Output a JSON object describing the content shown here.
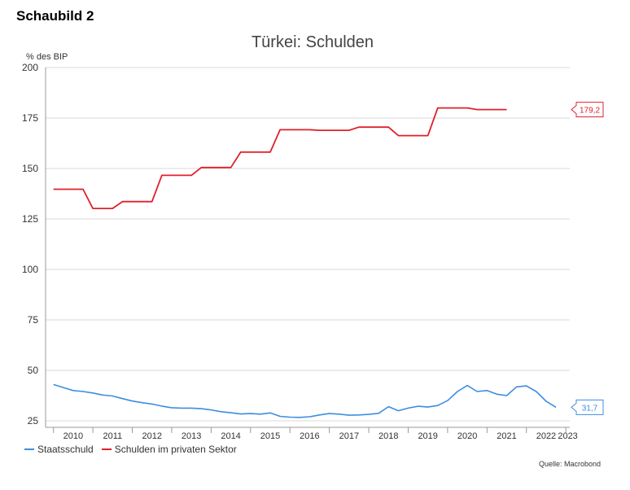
{
  "figure_label": "Schaubild 2",
  "source": "Quelle: Macrobond",
  "colors": {
    "staatsschuld": "#3d8de0",
    "privat": "#e0202a",
    "grid": "#d9d9d9",
    "axis": "#999999"
  },
  "chart_data": {
    "type": "line",
    "title": "Türkei: Schulden",
    "ylabel": "% des BIP",
    "xlabel": "",
    "ylim": [
      25,
      200
    ],
    "yticks": [
      "200",
      "175",
      "150",
      "125",
      "100",
      "75",
      "50",
      "25"
    ],
    "xlim": [
      2009.8,
      2023.1
    ],
    "xtick_labels": [
      "2010",
      "2011",
      "2012",
      "2013",
      "2014",
      "2015",
      "2016",
      "2017",
      "2018",
      "2019",
      "2020",
      "2021",
      "2022",
      "2023"
    ],
    "grid": true,
    "legend_position": "bottom-left",
    "series": [
      {
        "name": "Staatsschuld",
        "color": "#3d8de0",
        "end_label": "31,7",
        "points": [
          [
            2010.0,
            43.0
          ],
          [
            2010.25,
            41.5
          ],
          [
            2010.5,
            40.0
          ],
          [
            2010.75,
            39.5
          ],
          [
            2011.0,
            38.8
          ],
          [
            2011.25,
            37.8
          ],
          [
            2011.5,
            37.3
          ],
          [
            2011.75,
            36.0
          ],
          [
            2012.0,
            34.8
          ],
          [
            2012.25,
            34.0
          ],
          [
            2012.5,
            33.3
          ],
          [
            2012.75,
            32.3
          ],
          [
            2013.0,
            31.5
          ],
          [
            2013.25,
            31.3
          ],
          [
            2013.5,
            31.3
          ],
          [
            2013.75,
            31.0
          ],
          [
            2014.0,
            30.4
          ],
          [
            2014.25,
            29.5
          ],
          [
            2014.5,
            29.0
          ],
          [
            2014.75,
            28.4
          ],
          [
            2015.0,
            28.6
          ],
          [
            2015.25,
            28.3
          ],
          [
            2015.5,
            28.9
          ],
          [
            2015.75,
            27.2
          ],
          [
            2016.0,
            26.8
          ],
          [
            2016.25,
            26.7
          ],
          [
            2016.5,
            27.0
          ],
          [
            2016.75,
            27.9
          ],
          [
            2017.0,
            28.6
          ],
          [
            2017.25,
            28.3
          ],
          [
            2017.5,
            27.8
          ],
          [
            2017.75,
            27.9
          ],
          [
            2018.0,
            28.2
          ],
          [
            2018.25,
            28.7
          ],
          [
            2018.5,
            32.0
          ],
          [
            2018.75,
            30.0
          ],
          [
            2019.0,
            31.3
          ],
          [
            2019.25,
            32.2
          ],
          [
            2019.5,
            31.8
          ],
          [
            2019.75,
            32.6
          ],
          [
            2020.0,
            35.0
          ],
          [
            2020.25,
            39.5
          ],
          [
            2020.5,
            42.5
          ],
          [
            2020.75,
            39.5
          ],
          [
            2021.0,
            40.0
          ],
          [
            2021.25,
            38.2
          ],
          [
            2021.5,
            37.5
          ],
          [
            2021.75,
            41.8
          ],
          [
            2022.0,
            42.3
          ],
          [
            2022.25,
            39.5
          ],
          [
            2022.5,
            34.7
          ],
          [
            2022.75,
            31.7
          ]
        ]
      },
      {
        "name": "Schulden im privaten Sektor",
        "color": "#e0202a",
        "end_label": "179,2",
        "points": [
          [
            2010.0,
            139.7
          ],
          [
            2010.75,
            139.7
          ],
          [
            2011.0,
            130.2
          ],
          [
            2011.5,
            130.2
          ],
          [
            2011.75,
            133.6
          ],
          [
            2012.5,
            133.6
          ],
          [
            2012.75,
            146.6
          ],
          [
            2013.5,
            146.6
          ],
          [
            2013.75,
            150.5
          ],
          [
            2014.5,
            150.5
          ],
          [
            2014.75,
            158.1
          ],
          [
            2015.5,
            158.1
          ],
          [
            2015.75,
            169.2
          ],
          [
            2016.5,
            169.2
          ],
          [
            2016.75,
            168.9
          ],
          [
            2017.5,
            168.9
          ],
          [
            2017.75,
            170.5
          ],
          [
            2018.5,
            170.5
          ],
          [
            2018.75,
            166.3
          ],
          [
            2019.5,
            166.3
          ],
          [
            2019.75,
            180.0
          ],
          [
            2020.5,
            180.0
          ],
          [
            2020.75,
            179.2
          ],
          [
            2021.5,
            179.2
          ]
        ]
      }
    ]
  }
}
